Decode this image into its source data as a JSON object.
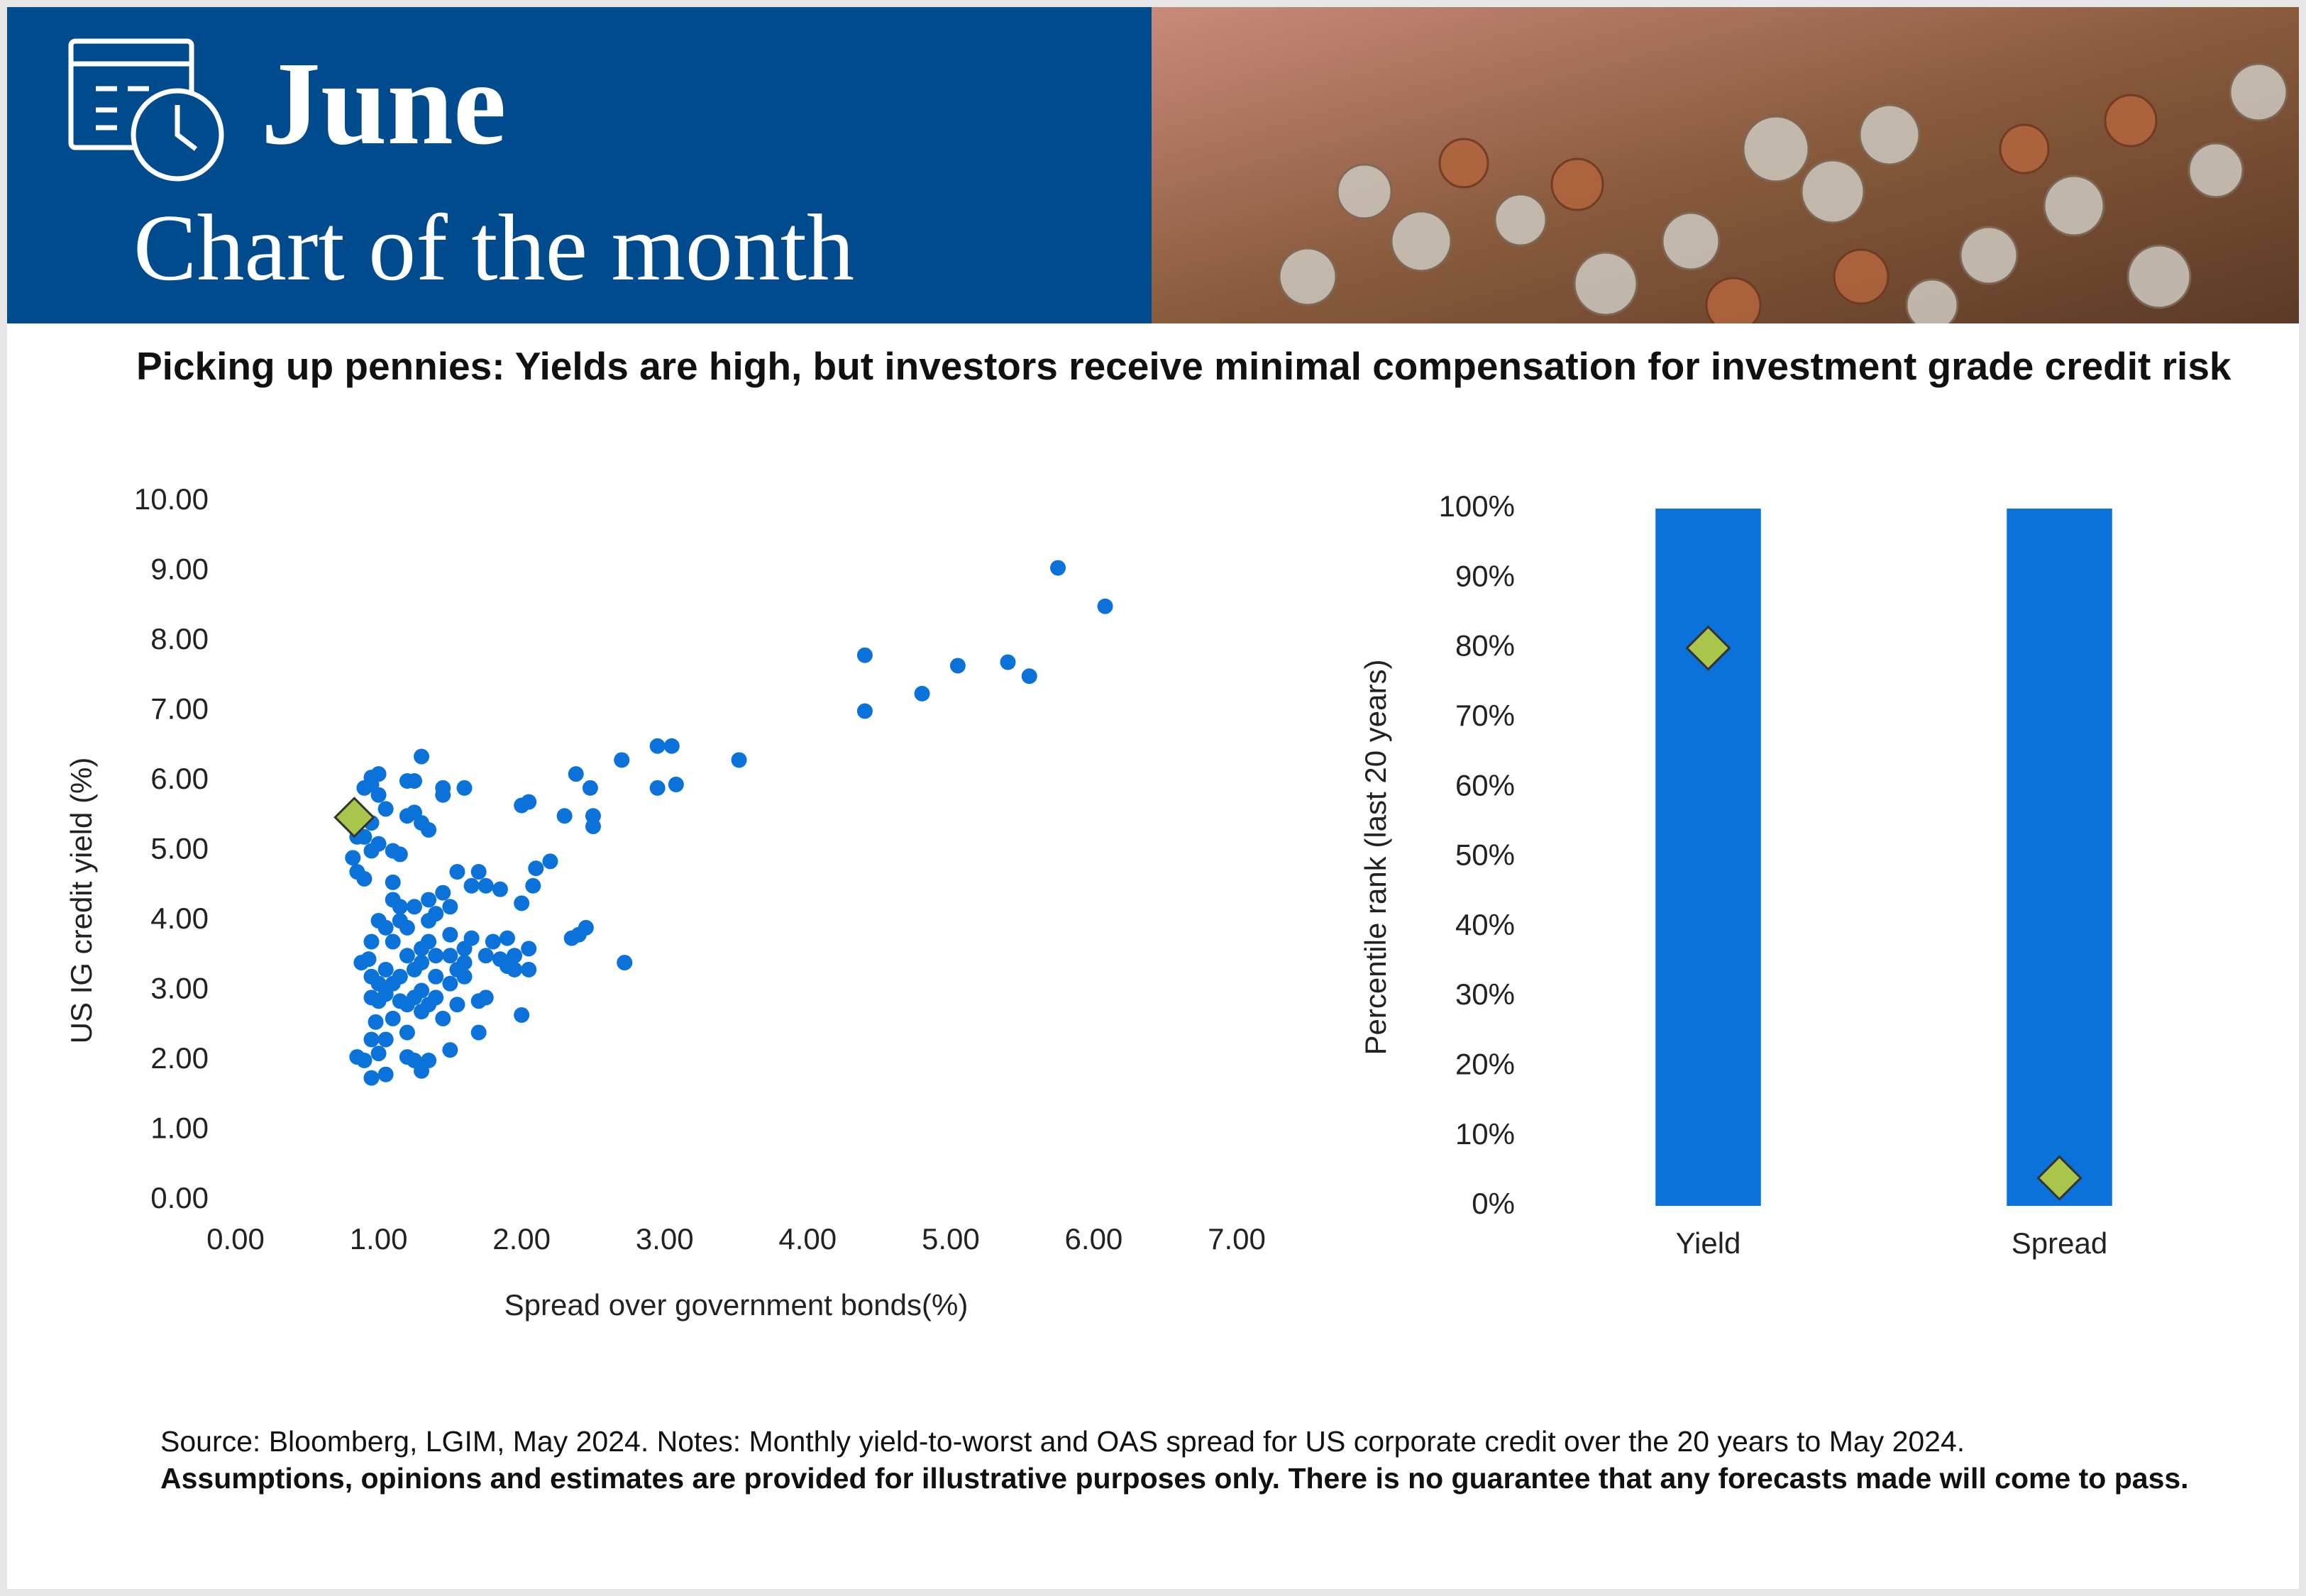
{
  "header": {
    "month": "June",
    "title": "Chart of the month"
  },
  "headline": "Picking up pennies: Yields are high, but investors receive minimal compensation for investment grade credit risk",
  "chart_data": [
    {
      "type": "scatter",
      "x_label": "Spread over government bonds(%)",
      "y_label": "US IG credit yield (%)",
      "xlim": [
        0,
        7
      ],
      "xticks": [
        {
          "value": 0,
          "label": "0.00"
        },
        {
          "value": 1,
          "label": "1.00"
        },
        {
          "value": 2,
          "label": "2.00"
        },
        {
          "value": 3,
          "label": "3.00"
        },
        {
          "value": 4,
          "label": "4.00"
        },
        {
          "value": 5,
          "label": "5.00"
        },
        {
          "value": 6,
          "label": "6.00"
        },
        {
          "value": 7,
          "label": "7.00"
        }
      ],
      "ylim": [
        0,
        10
      ],
      "yticks": [
        {
          "value": 0,
          "label": "0.00"
        },
        {
          "value": 1,
          "label": "1.00"
        },
        {
          "value": 2,
          "label": "2.00"
        },
        {
          "value": 3,
          "label": "3.00"
        },
        {
          "value": 4,
          "label": "4.00"
        },
        {
          "value": 5,
          "label": "5.00"
        },
        {
          "value": 6,
          "label": "6.00"
        },
        {
          "value": 7,
          "label": "7.00"
        },
        {
          "value": 8,
          "label": "8.00"
        },
        {
          "value": 9,
          "label": "9.00"
        },
        {
          "value": 10,
          "label": "10.00"
        }
      ],
      "grid": false,
      "series": [
        {
          "color": "#0a72d8",
          "marker": "circle",
          "x": [
            4.4,
            4.4,
            4.8,
            5.05,
            5.4,
            5.55,
            5.75,
            6.08,
            3.52,
            2.95,
            3.05,
            2.95,
            3.08,
            2.7,
            2.38,
            2.48,
            2.5,
            2.5,
            2.3,
            2.2,
            2.1,
            2.08,
            2.0,
            2.45,
            2.4,
            2.35,
            2.72,
            2.05,
            2.0,
            1.6,
            1.45,
            1.45,
            1.3,
            2.05,
            2.05,
            1.95,
            1.95,
            2.0,
            1.75,
            1.7,
            1.7,
            1.5,
            1.9,
            1.85,
            1.75,
            1.65,
            1.7,
            1.55,
            1.75,
            1.6,
            1.6,
            1.5,
            1.5,
            1.5,
            1.45,
            1.4,
            1.35,
            1.3,
            1.3,
            1.3,
            1.3,
            1.25,
            1.3,
            1.35,
            1.2,
            1.1,
            1.05,
            1.0,
            1.0,
            0.95,
            0.95,
            1.0,
            0.95,
            1.05,
            0.9,
            0.85,
            0.95,
            0.98,
            1.1,
            1.15,
            1.2,
            1.25,
            1.1,
            1.05,
            1.0,
            0.95,
            0.93,
            1.2,
            1.4,
            1.4,
            1.45,
            1.55,
            1.2,
            1.15,
            1.1,
            1.25,
            0.82,
            0.85,
            0.9,
            0.95,
            1.0,
            1.1,
            1.15,
            1.2,
            1.3,
            1.35,
            1.25,
            1.05,
            1.0,
            0.95,
            0.9,
            0.95,
            1.0,
            1.25,
            1.2,
            0.9,
            0.95,
            0.85,
            1.1,
            1.15,
            1.5,
            1.6,
            1.65,
            1.8,
            1.85,
            1.9,
            1.35,
            1.05,
            1.15,
            1.25,
            1.35,
            1.35,
            1.4,
            1.55,
            0.88,
            1.2,
            1.05
          ],
          "values": [
            7.8,
            7.0,
            7.25,
            7.65,
            7.7,
            7.5,
            9.05,
            8.5,
            6.3,
            6.5,
            6.5,
            5.9,
            5.95,
            6.3,
            6.1,
            5.9,
            5.5,
            5.35,
            5.5,
            4.85,
            4.75,
            4.5,
            4.25,
            3.9,
            3.8,
            3.75,
            3.4,
            5.7,
            5.65,
            5.9,
            5.9,
            5.8,
            6.35,
            3.6,
            3.3,
            3.5,
            3.3,
            2.65,
            2.9,
            2.85,
            2.4,
            2.15,
            3.75,
            4.45,
            4.5,
            4.5,
            4.7,
            4.7,
            3.5,
            3.2,
            3.4,
            3.5,
            3.8,
            4.2,
            4.4,
            4.1,
            4.3,
            3.6,
            3.4,
            3.0,
            2.7,
            2.0,
            1.85,
            2.0,
            2.05,
            3.1,
            3.3,
            3.1,
            2.85,
            2.9,
            3.2,
            2.1,
            1.75,
            1.8,
            2.0,
            2.05,
            2.3,
            2.55,
            3.7,
            4.0,
            3.9,
            4.2,
            4.3,
            3.9,
            4.0,
            3.7,
            3.45,
            3.5,
            3.2,
            2.9,
            2.6,
            2.8,
            2.8,
            3.2,
            2.6,
            3.3,
            4.9,
            4.7,
            4.6,
            5.0,
            5.1,
            5.0,
            4.95,
            5.5,
            5.4,
            5.3,
            5.55,
            5.6,
            5.8,
            5.95,
            5.9,
            6.05,
            6.1,
            6.0,
            6.0,
            5.2,
            5.4,
            5.2,
            4.55,
            4.2,
            3.1,
            3.6,
            3.75,
            3.7,
            3.45,
            3.35,
            3.7,
            2.95,
            2.85,
            2.9,
            2.8,
            4.0,
            3.5,
            3.3,
            3.4,
            2.4,
            2.3
          ]
        },
        {
          "color": "#a9c64a",
          "marker": "diamond",
          "x": [
            0.83
          ],
          "values": [
            5.48
          ]
        }
      ]
    },
    {
      "type": "bar",
      "y_label": "Percentile rank (last 20 years)",
      "categories": [
        "Yield",
        "Spread"
      ],
      "ylim": [
        0,
        100
      ],
      "yticks": [
        {
          "value": 0,
          "label": "0%"
        },
        {
          "value": 10,
          "label": "10%"
        },
        {
          "value": 20,
          "label": "20%"
        },
        {
          "value": 30,
          "label": "30%"
        },
        {
          "value": 40,
          "label": "40%"
        },
        {
          "value": 50,
          "label": "50%"
        },
        {
          "value": 60,
          "label": "60%"
        },
        {
          "value": 70,
          "label": "70%"
        },
        {
          "value": 80,
          "label": "80%"
        },
        {
          "value": 90,
          "label": "90%"
        },
        {
          "value": 100,
          "label": "100%"
        }
      ],
      "grid": false,
      "series": [
        {
          "color": "#0a72d8",
          "marker": "bar",
          "values": [
            100,
            100
          ]
        },
        {
          "color": "#a9c64a",
          "marker": "diamond",
          "values": [
            80,
            4
          ]
        }
      ]
    }
  ],
  "footer": {
    "source": "Source: Bloomberg, LGIM, May 2024. Notes: Monthly yield-to-worst and OAS spread for US corporate credit over the 20 years to May 2024.",
    "disclaimer": "Assumptions, opinions and estimates are provided for illustrative purposes only. There is no guarantee that any forecasts made will come to pass."
  }
}
